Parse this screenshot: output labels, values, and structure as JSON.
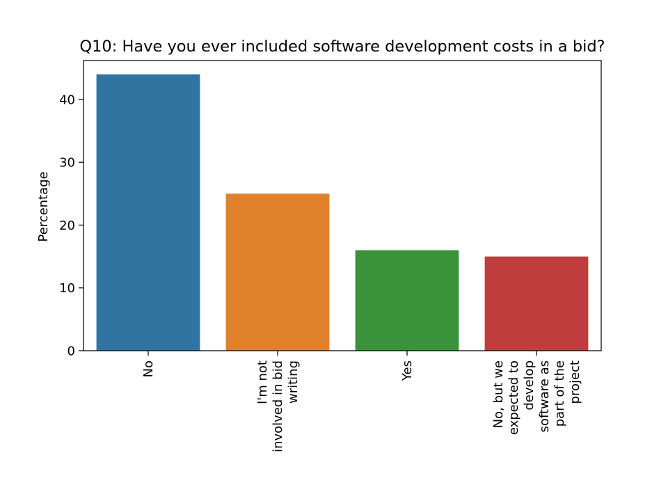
{
  "chart_data": {
    "type": "bar",
    "title": "Q10: Have you ever included software development costs in a bid?",
    "xlabel": "",
    "ylabel": "Percentage",
    "ylim": [
      0,
      46.2
    ],
    "yticks": [
      0,
      10,
      20,
      30,
      40
    ],
    "grid": false,
    "categories": [
      [
        "No"
      ],
      [
        "I'm not",
        "involved in bid",
        "writing"
      ],
      [
        "Yes"
      ],
      [
        "No, but we",
        "expected to",
        "develop",
        "software as",
        "part of the",
        "project"
      ]
    ],
    "values": [
      44,
      25,
      16,
      15
    ],
    "colors": [
      "#3274a1",
      "#e1812c",
      "#3a923a",
      "#c03d3e"
    ]
  }
}
